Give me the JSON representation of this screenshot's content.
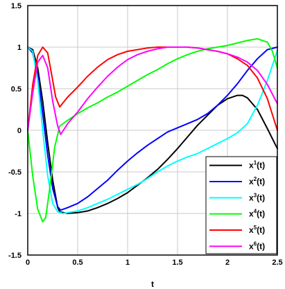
{
  "chart_data": {
    "type": "line",
    "title": "",
    "xlabel": "t",
    "ylabel": "",
    "xlim": [
      0,
      2.5
    ],
    "ylim": [
      -1.5,
      1.5
    ],
    "x_ticks": [
      0,
      0.5,
      1,
      1.5,
      2,
      2.5
    ],
    "x_tick_labels": [
      "0",
      "0.5",
      "1",
      "1.5",
      "2",
      "2.5"
    ],
    "y_ticks": [
      -1.5,
      -1,
      -0.5,
      0,
      0.5,
      1,
      1.5
    ],
    "y_tick_labels": [
      "-1.5",
      "-1",
      "-0.5",
      "0",
      "0.5",
      "1",
      "1.5"
    ],
    "grid": true,
    "legend_position": "bottom-right",
    "series": [
      {
        "name": "x1(t)",
        "label_base": "x",
        "label_sup": "1",
        "label_suffix": "(t)",
        "color": "#000000",
        "x": [
          0,
          0.05,
          0.1,
          0.15,
          0.2,
          0.25,
          0.3,
          0.32,
          0.4,
          0.5,
          0.6,
          0.7,
          0.8,
          0.9,
          1.0,
          1.1,
          1.2,
          1.3,
          1.4,
          1.5,
          1.6,
          1.7,
          1.8,
          1.9,
          2.0,
          2.1,
          2.15,
          2.2,
          2.3,
          2.4,
          2.5
        ],
        "values": [
          1.0,
          0.97,
          0.75,
          0.35,
          -0.15,
          -0.6,
          -0.93,
          -0.98,
          -1.0,
          -0.99,
          -0.97,
          -0.93,
          -0.88,
          -0.82,
          -0.75,
          -0.66,
          -0.57,
          -0.47,
          -0.35,
          -0.22,
          -0.08,
          0.06,
          0.18,
          0.3,
          0.38,
          0.42,
          0.42,
          0.39,
          0.25,
          0.02,
          -0.22
        ]
      },
      {
        "name": "x2(t)",
        "label_base": "x",
        "label_sup": "2",
        "label_suffix": "(t)",
        "color": "#0000ff",
        "x": [
          0,
          0.05,
          0.1,
          0.15,
          0.2,
          0.25,
          0.3,
          0.33,
          0.4,
          0.5,
          0.6,
          0.7,
          0.8,
          0.9,
          1.0,
          1.1,
          1.2,
          1.3,
          1.4,
          1.5,
          1.6,
          1.7,
          1.8,
          1.9,
          2.0,
          2.1,
          2.2,
          2.3,
          2.4,
          2.5
        ],
        "values": [
          1.0,
          0.93,
          0.67,
          0.2,
          -0.3,
          -0.7,
          -0.92,
          -0.96,
          -0.93,
          -0.88,
          -0.8,
          -0.7,
          -0.6,
          -0.48,
          -0.37,
          -0.27,
          -0.18,
          -0.1,
          -0.02,
          0.03,
          0.08,
          0.13,
          0.2,
          0.3,
          0.42,
          0.56,
          0.72,
          0.86,
          0.97,
          1.0
        ]
      },
      {
        "name": "x3(t)",
        "label_base": "x",
        "label_sup": "3",
        "label_suffix": "(t)",
        "color": "#00ffff",
        "x": [
          0,
          0.05,
          0.1,
          0.15,
          0.2,
          0.25,
          0.3,
          0.35,
          0.4,
          0.5,
          0.6,
          0.7,
          0.8,
          0.9,
          1.0,
          1.1,
          1.2,
          1.3,
          1.4,
          1.5,
          1.6,
          1.7,
          1.8,
          1.9,
          2.0,
          2.1,
          2.2,
          2.3,
          2.4,
          2.5
        ],
        "values": [
          1.0,
          0.95,
          0.6,
          0.0,
          -0.55,
          -0.88,
          -0.98,
          -1.0,
          -0.99,
          -0.97,
          -0.93,
          -0.88,
          -0.83,
          -0.77,
          -0.71,
          -0.65,
          -0.58,
          -0.5,
          -0.43,
          -0.37,
          -0.32,
          -0.28,
          -0.22,
          -0.16,
          -0.1,
          -0.03,
          0.08,
          0.3,
          0.6,
          0.96
        ]
      },
      {
        "name": "x4(t)",
        "label_base": "x",
        "label_sup": "4",
        "label_suffix": "(t)",
        "color": "#00ff00",
        "x": [
          0,
          0.05,
          0.1,
          0.15,
          0.18,
          0.22,
          0.27,
          0.32,
          0.4,
          0.5,
          0.6,
          0.7,
          0.8,
          0.9,
          1.0,
          1.1,
          1.2,
          1.3,
          1.4,
          1.5,
          1.6,
          1.7,
          1.8,
          1.9,
          2.0,
          2.1,
          2.2,
          2.3,
          2.4,
          2.45,
          2.5
        ],
        "values": [
          0.0,
          -0.55,
          -0.95,
          -1.1,
          -1.05,
          -0.7,
          -0.2,
          0.05,
          0.12,
          0.2,
          0.27,
          0.33,
          0.4,
          0.46,
          0.53,
          0.6,
          0.67,
          0.73,
          0.8,
          0.86,
          0.91,
          0.95,
          0.98,
          1.0,
          1.02,
          1.05,
          1.08,
          1.1,
          1.06,
          0.95,
          0.75
        ]
      },
      {
        "name": "x5(t)",
        "label_base": "x",
        "label_sup": "5",
        "label_suffix": "(t)",
        "color": "#ff0000",
        "x": [
          0,
          0.05,
          0.1,
          0.15,
          0.2,
          0.25,
          0.28,
          0.32,
          0.4,
          0.5,
          0.6,
          0.7,
          0.8,
          0.9,
          1.0,
          1.1,
          1.2,
          1.3,
          1.4,
          1.5,
          1.6,
          1.7,
          1.8,
          1.9,
          2.0,
          2.1,
          2.2,
          2.3,
          2.4,
          2.5
        ],
        "values": [
          0.0,
          0.55,
          0.9,
          1.0,
          0.93,
          0.6,
          0.4,
          0.28,
          0.4,
          0.52,
          0.65,
          0.76,
          0.85,
          0.91,
          0.95,
          0.97,
          0.99,
          1.0,
          1.0,
          1.0,
          1.0,
          0.99,
          0.97,
          0.95,
          0.92,
          0.86,
          0.78,
          0.63,
          0.38,
          0.0
        ]
      },
      {
        "name": "x6(t)",
        "label_base": "x",
        "label_sup": "6",
        "label_suffix": "(t)",
        "color": "#ff00ff",
        "x": [
          0,
          0.05,
          0.1,
          0.15,
          0.2,
          0.25,
          0.3,
          0.33,
          0.4,
          0.5,
          0.6,
          0.7,
          0.8,
          0.9,
          1.0,
          1.1,
          1.2,
          1.3,
          1.4,
          1.5,
          1.6,
          1.7,
          1.8,
          1.9,
          2.0,
          2.1,
          2.2,
          2.3,
          2.4,
          2.5
        ],
        "values": [
          0.0,
          0.45,
          0.82,
          0.9,
          0.75,
          0.35,
          0.05,
          -0.05,
          0.08,
          0.22,
          0.38,
          0.52,
          0.65,
          0.76,
          0.85,
          0.91,
          0.95,
          0.98,
          1.0,
          1.0,
          1.0,
          0.99,
          0.97,
          0.95,
          0.92,
          0.88,
          0.82,
          0.72,
          0.55,
          0.32
        ]
      }
    ]
  }
}
